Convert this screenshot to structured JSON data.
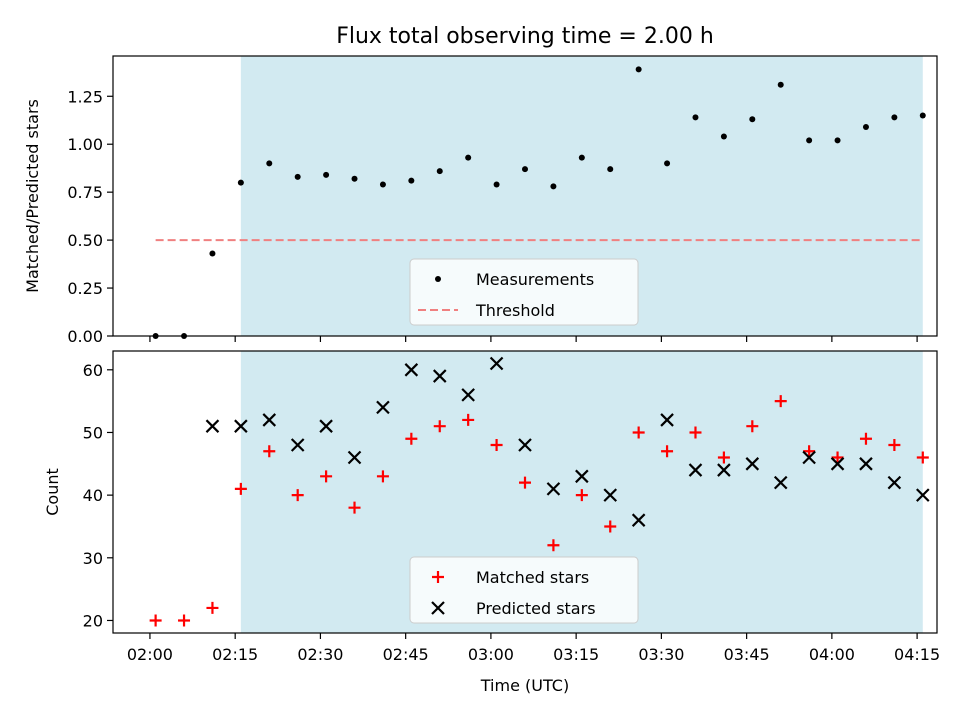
{
  "figure": {
    "title": "Flux total observing time = 2.00 h"
  },
  "chart_data": [
    {
      "type": "scatter",
      "panel": "top",
      "title": "Flux total observing time = 2.00 h",
      "xlabel": "",
      "ylabel": "Matched/Predicted stars",
      "ylim": [
        0,
        1.46
      ],
      "yticks": [
        0,
        0.25,
        0.5,
        0.75,
        1.0,
        1.25
      ],
      "ytick_labels": [
        "0.00",
        "0.25",
        "0.50",
        "0.75",
        "1.00",
        "1.25"
      ],
      "shaded_span": {
        "from": "02:16",
        "to": "04:16",
        "color": "#add8e6"
      },
      "legend": {
        "position": "bottom-center",
        "entries": [
          "Measurements",
          "Threshold"
        ]
      },
      "series": [
        {
          "name": "Measurements",
          "marker": "dot",
          "color": "#000000",
          "x": [
            "02:01",
            "02:06",
            "02:11",
            "02:16",
            "02:21",
            "02:26",
            "02:31",
            "02:36",
            "02:41",
            "02:46",
            "02:51",
            "02:56",
            "03:01",
            "03:06",
            "03:11",
            "03:16",
            "03:21",
            "03:26",
            "03:31",
            "03:36",
            "03:41",
            "03:46",
            "03:51",
            "03:56",
            "04:01",
            "04:06",
            "04:11",
            "04:16"
          ],
          "y": [
            0.0,
            0.0,
            0.43,
            0.8,
            0.9,
            0.83,
            0.84,
            0.82,
            0.79,
            0.81,
            0.86,
            0.93,
            0.79,
            0.87,
            0.78,
            0.93,
            0.87,
            1.39,
            0.9,
            1.14,
            1.04,
            1.13,
            1.31,
            1.02,
            1.02,
            1.09,
            1.14,
            1.15
          ]
        },
        {
          "name": "Threshold",
          "line": "dashed",
          "color": "#f08080",
          "x": [
            "02:01",
            "04:16"
          ],
          "y": [
            0.5,
            0.5
          ]
        }
      ]
    },
    {
      "type": "scatter",
      "panel": "bottom",
      "xlabel": "Time (UTC)",
      "ylabel": "Count",
      "ylim": [
        18,
        63
      ],
      "yticks": [
        20,
        30,
        40,
        50,
        60
      ],
      "xticks": [
        "02:00",
        "02:15",
        "02:30",
        "02:45",
        "03:00",
        "03:15",
        "03:30",
        "03:45",
        "04:00",
        "04:15"
      ],
      "shaded_span": {
        "from": "02:16",
        "to": "04:16",
        "color": "#add8e6"
      },
      "legend": {
        "position": "bottom-center",
        "entries": [
          "Matched stars",
          "Predicted stars"
        ]
      },
      "series": [
        {
          "name": "Matched stars",
          "marker": "plus",
          "color": "#ff0000",
          "x": [
            "02:01",
            "02:06",
            "02:11",
            "02:16",
            "02:21",
            "02:26",
            "02:31",
            "02:36",
            "02:41",
            "02:46",
            "02:51",
            "02:56",
            "03:01",
            "03:06",
            "03:11",
            "03:16",
            "03:21",
            "03:26",
            "03:31",
            "03:36",
            "03:41",
            "03:46",
            "03:51",
            "03:56",
            "04:01",
            "04:06",
            "04:11",
            "04:16"
          ],
          "y": [
            20,
            20,
            22,
            41,
            47,
            40,
            43,
            38,
            43,
            49,
            51,
            52,
            48,
            42,
            32,
            40,
            35,
            50,
            47,
            50,
            46,
            51,
            55,
            47,
            46,
            49,
            48,
            46
          ]
        },
        {
          "name": "Predicted stars",
          "marker": "x",
          "color": "#000000",
          "x": [
            "02:11",
            "02:16",
            "02:21",
            "02:26",
            "02:31",
            "02:36",
            "02:41",
            "02:46",
            "02:51",
            "02:56",
            "03:01",
            "03:06",
            "03:11",
            "03:16",
            "03:21",
            "03:26",
            "03:31",
            "03:36",
            "03:41",
            "03:46",
            "03:51",
            "03:56",
            "04:01",
            "04:06",
            "04:11",
            "04:16"
          ],
          "y": [
            51,
            51,
            52,
            48,
            51,
            46,
            54,
            60,
            59,
            56,
            61,
            48,
            41,
            43,
            40,
            36,
            52,
            44,
            44,
            45,
            42,
            46,
            45,
            45,
            42,
            40
          ]
        }
      ]
    }
  ]
}
